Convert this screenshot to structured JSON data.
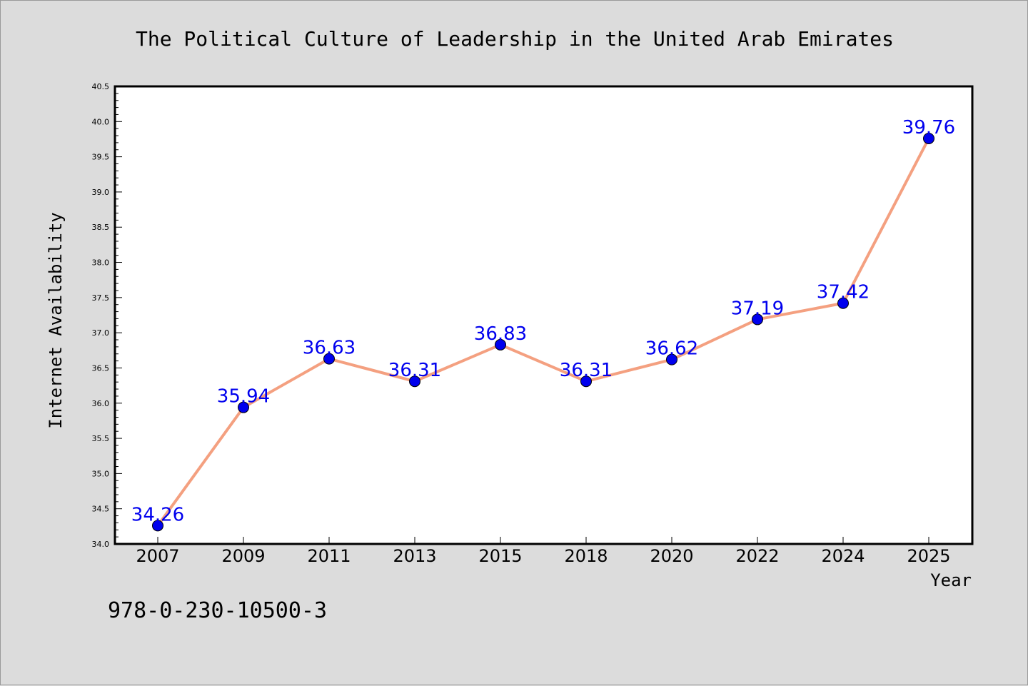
{
  "chart_data": {
    "type": "line",
    "title": "The Political Culture of Leadership in the United Arab Emirates",
    "xlabel": "Year",
    "ylabel": "Internet Availability",
    "categories": [
      "2007",
      "2009",
      "2011",
      "2013",
      "2015",
      "2018",
      "2020",
      "2022",
      "2024",
      "2025"
    ],
    "series": [
      {
        "values": [
          34.26,
          35.94,
          36.63,
          36.31,
          36.83,
          36.31,
          36.62,
          37.19,
          37.42,
          39.76
        ],
        "data_labels": [
          "34.26",
          "35.94",
          "36.63",
          "36.31",
          "36.83",
          "36.31",
          "36.62",
          "37.19",
          "37.42",
          "39.76"
        ]
      }
    ],
    "ylim": [
      34.0,
      40.5
    ],
    "yticks": [
      "34.0",
      "34.5",
      "35.0",
      "35.5",
      "36.0",
      "36.5",
      "37.0",
      "37.5",
      "38.0",
      "38.5",
      "39.0",
      "39.5",
      "40.0",
      "40.5"
    ],
    "grid": false,
    "legend": "none"
  },
  "footer": {
    "isbn": "978-0-230-10500-3"
  },
  "colors": {
    "background": "#dcdcdc",
    "plot_background": "#ffffff",
    "line": "#f4a080",
    "marker": "#0000ee",
    "data_label": "#0000ee"
  }
}
